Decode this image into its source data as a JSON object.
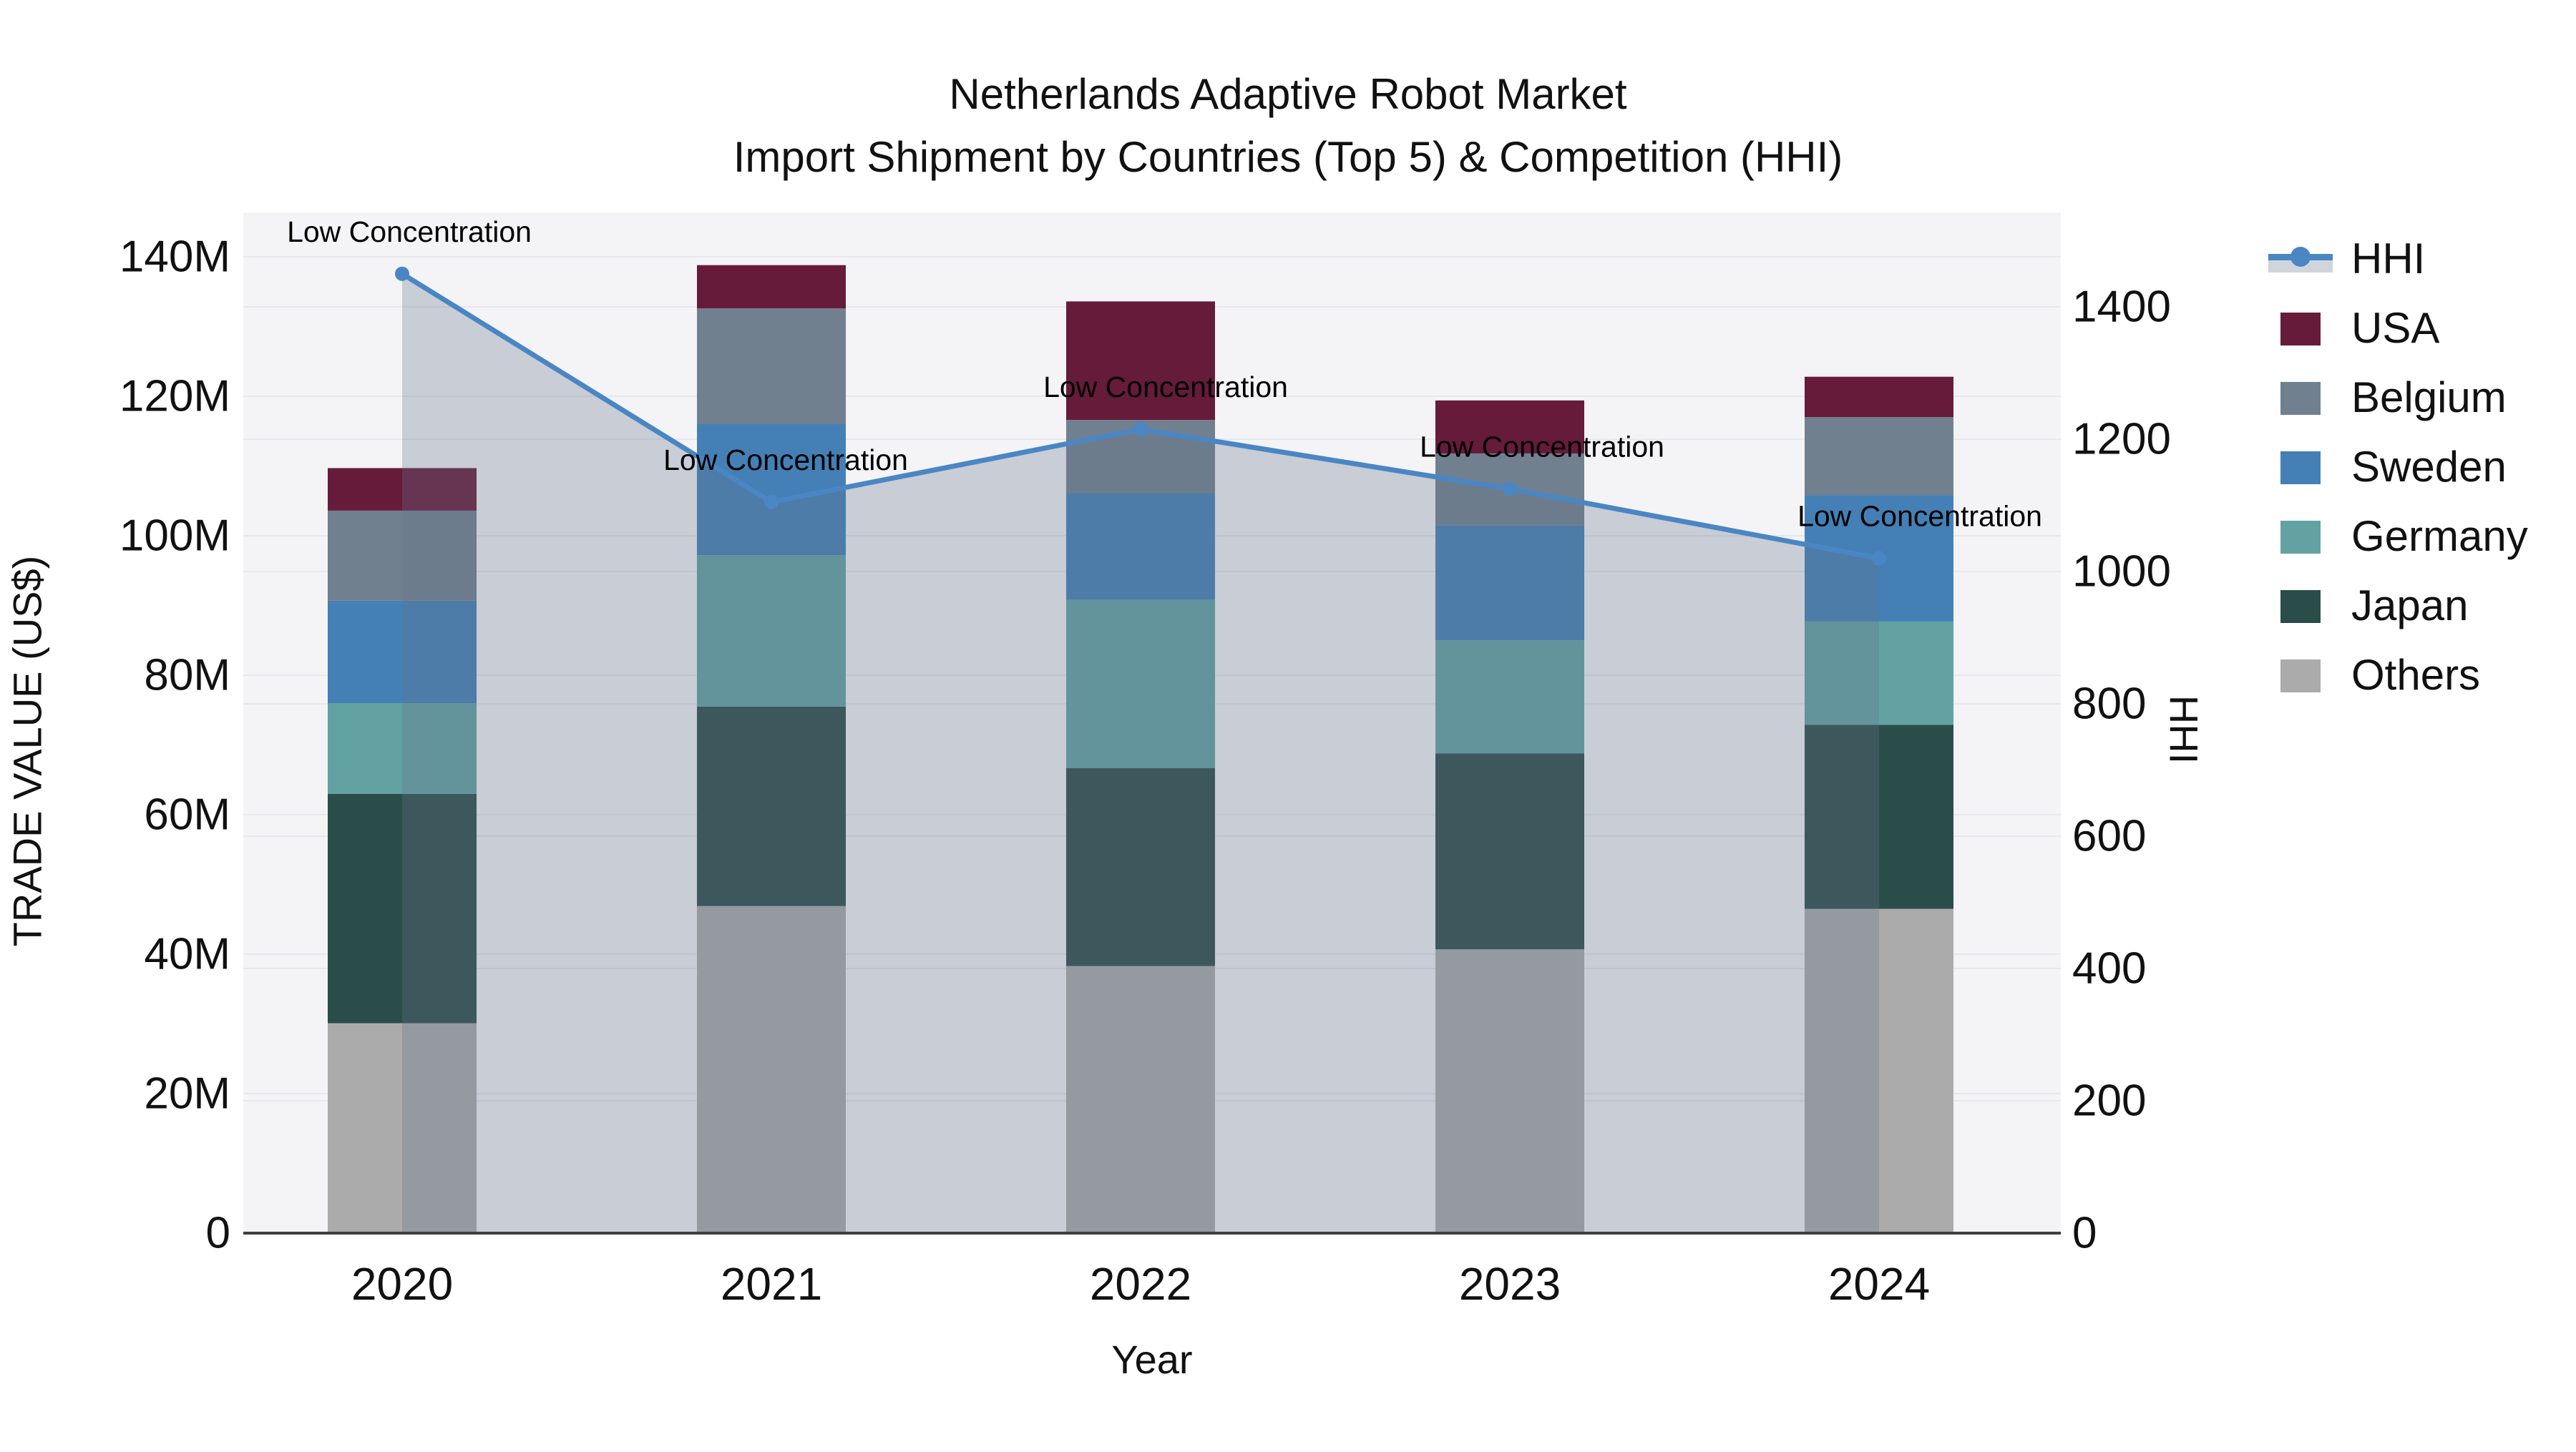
{
  "title": {
    "line1": "Netherlands Adaptive Robot Market",
    "line2": "Import Shipment by Countries (Top 5) & Competition (HHI)"
  },
  "axes": {
    "left": {
      "title": "TRADE VALUE (US$)",
      "tick_labels": [
        "0",
        "20M",
        "40M",
        "60M",
        "80M",
        "100M",
        "120M",
        "140M"
      ]
    },
    "right": {
      "title": "HHI",
      "tick_labels": [
        "0",
        "200",
        "400",
        "600",
        "800",
        "1000",
        "1200",
        "1400"
      ]
    },
    "bottom": {
      "title": "Year",
      "tick_labels": [
        "2020",
        "2021",
        "2022",
        "2023",
        "2024"
      ]
    }
  },
  "legend": {
    "items": [
      {
        "label": "HHI",
        "type": "line",
        "color": "#4a86c4"
      },
      {
        "label": "USA",
        "type": "swatch",
        "color": "#661b3a"
      },
      {
        "label": "Belgium",
        "type": "swatch",
        "color": "#71808f"
      },
      {
        "label": "Sweden",
        "type": "swatch",
        "color": "#4480b5"
      },
      {
        "label": "Germany",
        "type": "swatch",
        "color": "#63a2a2"
      },
      {
        "label": "Japan",
        "type": "swatch",
        "color": "#2b4d4a"
      },
      {
        "label": "Others",
        "type": "swatch",
        "color": "#ababab"
      }
    ]
  },
  "chart_data": {
    "type": "bar",
    "bar_mode": "stacked",
    "combo": "stacked bars (left axis) + line with area fill (right axis)",
    "title": "Netherlands Adaptive Robot Market — Import Shipment by Countries (Top 5) & Competition (HHI)",
    "xlabel": "Year",
    "categories": [
      "2020",
      "2021",
      "2022",
      "2023",
      "2024"
    ],
    "value_unit": "million US$",
    "ylabel_left": "TRADE VALUE (US$)",
    "ylim_left": [
      0,
      146
    ],
    "yticks_left": [
      0,
      20,
      40,
      60,
      80,
      100,
      120,
      140
    ],
    "ylabel_right": "HHI",
    "ylim_right": [
      0,
      1543
    ],
    "yticks_right": [
      0,
      200,
      400,
      600,
      800,
      1000,
      1200,
      1400
    ],
    "grid": true,
    "legend_position": "right",
    "series": [
      {
        "name": "Others",
        "color": "#ababab",
        "values": [
          30.1,
          46.9,
          38.3,
          40.7,
          46.5
        ]
      },
      {
        "name": "Japan",
        "color": "#2b4d4a",
        "values": [
          32.9,
          28.6,
          28.4,
          28.1,
          26.4
        ]
      },
      {
        "name": "Germany",
        "color": "#63a2a2",
        "values": [
          13.0,
          21.7,
          24.1,
          16.2,
          14.8
        ]
      },
      {
        "name": "Sweden",
        "color": "#4480b5",
        "values": [
          14.7,
          18.8,
          15.3,
          16.5,
          18.1
        ]
      },
      {
        "name": "Belgium",
        "color": "#71808f",
        "values": [
          12.9,
          16.6,
          10.5,
          10.3,
          11.2
        ]
      },
      {
        "name": "USA",
        "color": "#661b3a",
        "values": [
          6.1,
          6.2,
          17.0,
          7.6,
          5.8
        ]
      }
    ],
    "stack_order": "bottom to top",
    "bar_totals": [
      109.7,
      138.8,
      133.6,
      119.4,
      122.8
    ],
    "line_series": {
      "name": "HHI",
      "color": "#4a86c4",
      "area_fill": "rgba(100,116,140,0.30)",
      "values": [
        1450,
        1105,
        1215,
        1125,
        1020
      ],
      "point_labels": [
        "Low Concentration",
        "Low Concentration",
        "Low Concentration",
        "Low Concentration",
        "Low Concentration"
      ]
    }
  },
  "colors": {
    "figure_bg": "#ffffff",
    "plot_bg": "#f4f4f6",
    "gridline": "#e6e8ec",
    "axis_line": "#3f3f42",
    "text": "#111111"
  }
}
